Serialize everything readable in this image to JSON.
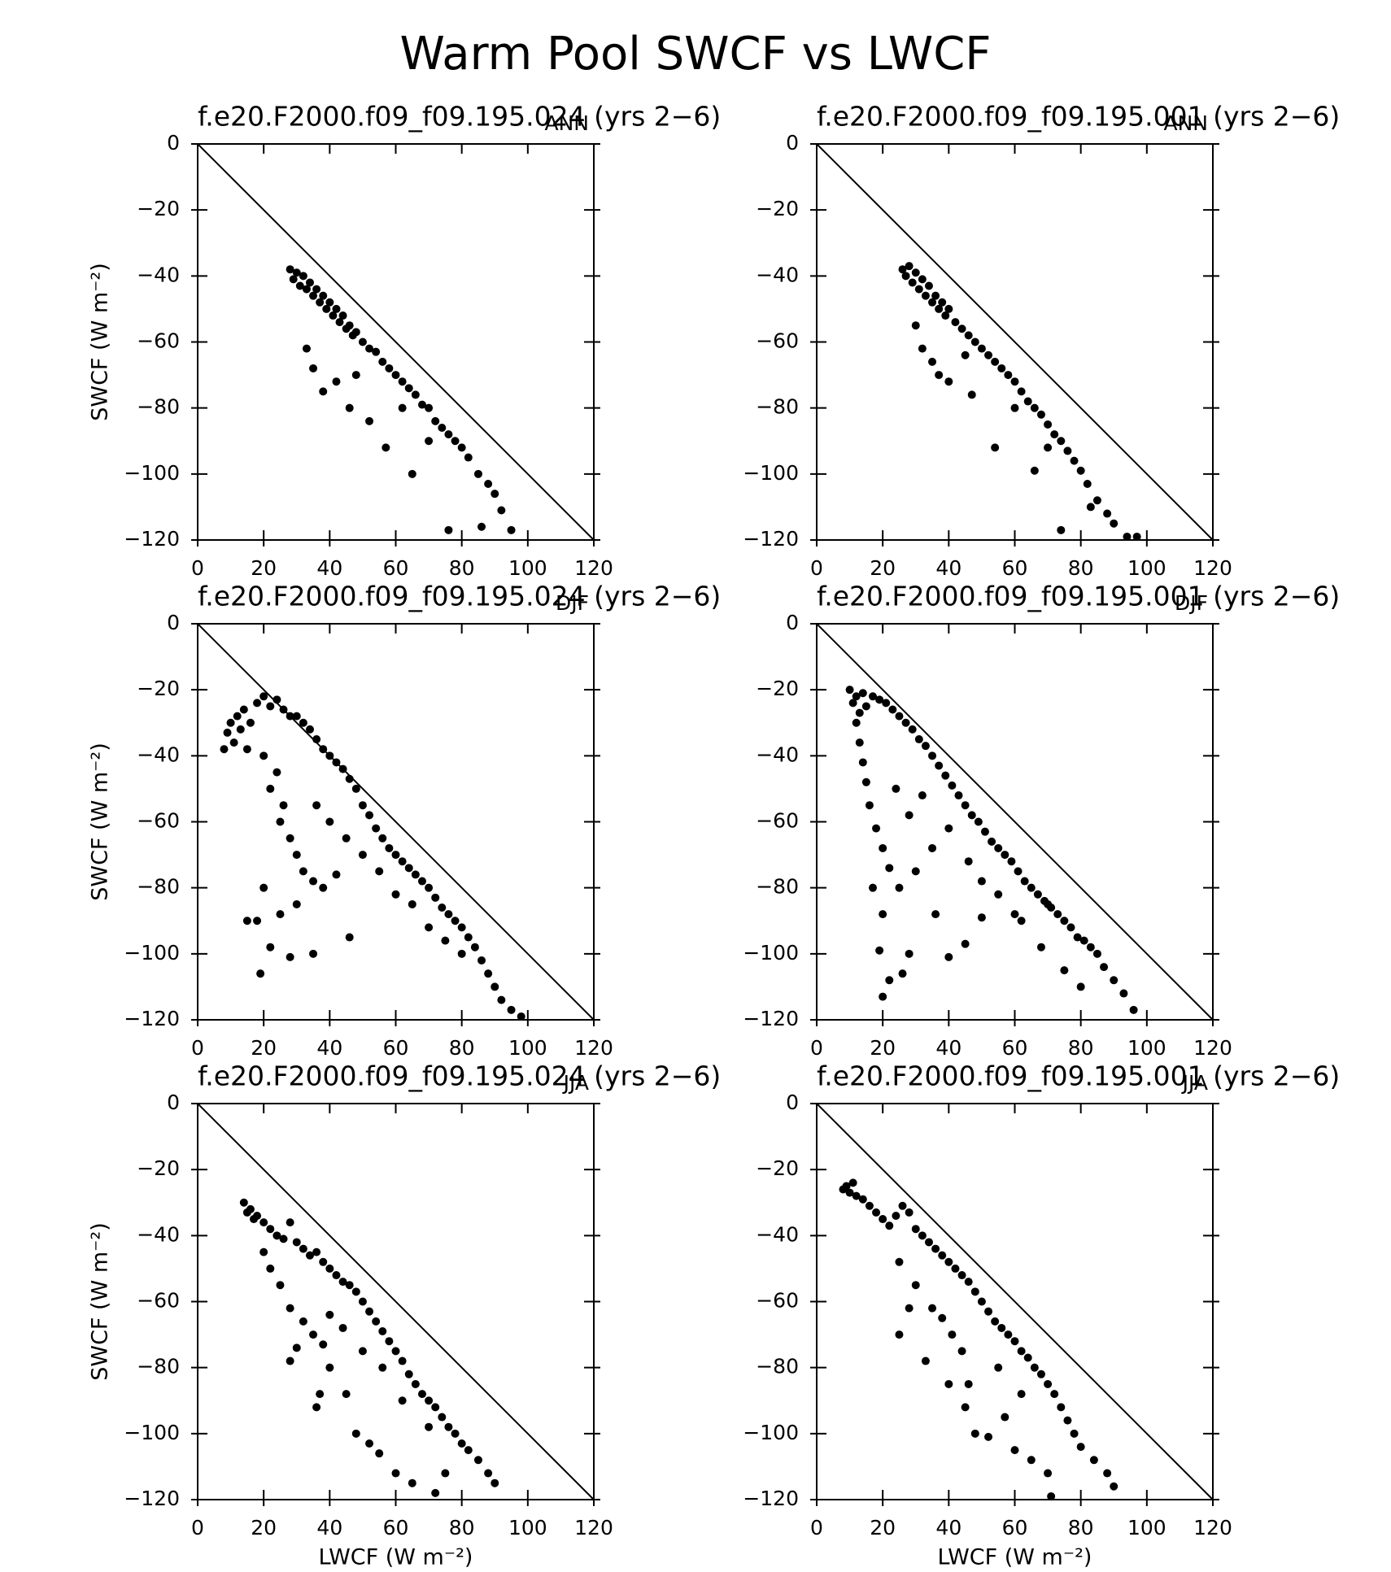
{
  "title": "Warm Pool SWCF vs LWCF",
  "chart_data": [
    {
      "type": "scatter",
      "title": "f.e20.F2000.f09_f09.195.024 (yrs 2−6)",
      "label": "ANN",
      "ylabel": "SWCF (W m⁻²)",
      "color": "#000000",
      "x": [
        28,
        29,
        30,
        31,
        32,
        33,
        34,
        35,
        36,
        37,
        38,
        39,
        40,
        41,
        42,
        43,
        44,
        45,
        46,
        47,
        48,
        50,
        52,
        54,
        56,
        58,
        60,
        62,
        64,
        66,
        68,
        70,
        72,
        74,
        76,
        78,
        80,
        82,
        85,
        88,
        90,
        92,
        95,
        33,
        35,
        38,
        42,
        46,
        48,
        52,
        57,
        65,
        76,
        86,
        62,
        70
      ],
      "y": [
        -38,
        -41,
        -39,
        -43,
        -40,
        -44,
        -42,
        -46,
        -44,
        -48,
        -46,
        -50,
        -48,
        -52,
        -50,
        -54,
        -52,
        -56,
        -55,
        -58,
        -57,
        -60,
        -62,
        -63,
        -66,
        -68,
        -70,
        -72,
        -74,
        -76,
        -79,
        -80,
        -84,
        -86,
        -88,
        -90,
        -92,
        -95,
        -100,
        -103,
        -106,
        -111,
        -117,
        -62,
        -68,
        -75,
        -72,
        -80,
        -70,
        -84,
        -92,
        -100,
        -117,
        -116,
        -80,
        -90
      ],
      "xlim": [
        0,
        120
      ],
      "ylim": [
        -120,
        0
      ],
      "xticks": [
        0,
        20,
        40,
        60,
        80,
        100,
        120
      ],
      "yticks": [
        0,
        {
          "value": -20,
          "label": "−20"
        },
        {
          "value": -40,
          "label": "−40"
        },
        {
          "value": -60,
          "label": "−60"
        },
        {
          "value": -80,
          "label": "−80"
        },
        {
          "value": -100,
          "label": "−100"
        },
        {
          "value": -120,
          "label": "−120"
        }
      ]
    },
    {
      "type": "scatter",
      "title": "f.e20.F2000.f09_f09.195.001 (yrs 2−6)",
      "label": "ANN",
      "color": "#000000",
      "x": [
        26,
        27,
        28,
        29,
        30,
        31,
        32,
        33,
        34,
        35,
        36,
        37,
        38,
        39,
        40,
        42,
        44,
        46,
        48,
        50,
        52,
        54,
        56,
        58,
        60,
        62,
        64,
        66,
        68,
        70,
        72,
        74,
        76,
        78,
        80,
        82,
        85,
        88,
        90,
        94,
        97,
        30,
        32,
        35,
        37,
        40,
        45,
        47,
        54,
        60,
        66,
        74,
        83,
        70
      ],
      "y": [
        -38,
        -40,
        -37,
        -42,
        -39,
        -44,
        -41,
        -46,
        -43,
        -48,
        -46,
        -50,
        -48,
        -52,
        -50,
        -54,
        -56,
        -58,
        -60,
        -62,
        -64,
        -66,
        -68,
        -70,
        -72,
        -75,
        -78,
        -80,
        -82,
        -85,
        -88,
        -90,
        -93,
        -96,
        -99,
        -103,
        -108,
        -112,
        -115,
        -119,
        -119,
        -55,
        -62,
        -66,
        -70,
        -72,
        -64,
        -76,
        -92,
        -80,
        -99,
        -117,
        -110,
        -92
      ],
      "xlim": [
        0,
        120
      ],
      "ylim": [
        -120,
        0
      ],
      "xticks": [
        0,
        20,
        40,
        60,
        80,
        100,
        120
      ],
      "yticks": [
        0,
        {
          "value": -20,
          "label": "−20"
        },
        {
          "value": -40,
          "label": "−40"
        },
        {
          "value": -60,
          "label": "−60"
        },
        {
          "value": -80,
          "label": "−80"
        },
        {
          "value": -100,
          "label": "−100"
        },
        {
          "value": -120,
          "label": "−120"
        }
      ]
    },
    {
      "type": "scatter",
      "title": "f.e20.F2000.f09_f09.195.024 (yrs 2−6)",
      "label": "DJF",
      "ylabel": "SWCF (W m⁻²)",
      "color": "#000000",
      "x": [
        8,
        9,
        10,
        11,
        12,
        13,
        14,
        15,
        16,
        18,
        20,
        22,
        24,
        26,
        28,
        30,
        32,
        34,
        36,
        38,
        40,
        42,
        44,
        46,
        48,
        50,
        52,
        54,
        56,
        58,
        60,
        62,
        64,
        66,
        68,
        70,
        72,
        74,
        76,
        78,
        80,
        82,
        84,
        86,
        88,
        90,
        92,
        95,
        98,
        20,
        22,
        25,
        28,
        30,
        32,
        35,
        38,
        42,
        24,
        26,
        36,
        40,
        45,
        20,
        18,
        15,
        19,
        22,
        28,
        35,
        46,
        30,
        25,
        60,
        70,
        75,
        65,
        55,
        50,
        80
      ],
      "y": [
        -38,
        -33,
        -30,
        -36,
        -28,
        -32,
        -26,
        -38,
        -30,
        -24,
        -22,
        -25,
        -23,
        -26,
        -28,
        -28,
        -30,
        -32,
        -35,
        -38,
        -40,
        -42,
        -44,
        -47,
        -50,
        -55,
        -58,
        -62,
        -65,
        -68,
        -70,
        -72,
        -74,
        -76,
        -78,
        -80,
        -83,
        -86,
        -88,
        -90,
        -92,
        -95,
        -98,
        -102,
        -106,
        -110,
        -114,
        -117,
        -119,
        -40,
        -50,
        -60,
        -65,
        -70,
        -75,
        -78,
        -80,
        -76,
        -45,
        -55,
        -55,
        -60,
        -65,
        -80,
        -90,
        -90,
        -106,
        -98,
        -101,
        -100,
        -95,
        -85,
        -88,
        -82,
        -92,
        -96,
        -85,
        -75,
        -70,
        -100
      ],
      "xlim": [
        0,
        120
      ],
      "ylim": [
        -120,
        0
      ],
      "xticks": [
        0,
        20,
        40,
        60,
        80,
        100,
        120
      ],
      "yticks": [
        0,
        {
          "value": -20,
          "label": "−20"
        },
        {
          "value": -40,
          "label": "−40"
        },
        {
          "value": -60,
          "label": "−60"
        },
        {
          "value": -80,
          "label": "−80"
        },
        {
          "value": -100,
          "label": "−100"
        },
        {
          "value": -120,
          "label": "−120"
        }
      ]
    },
    {
      "type": "scatter",
      "title": "f.e20.F2000.f09_f09.195.001 (yrs 2−6)",
      "label": "DJF",
      "color": "#000000",
      "x": [
        10,
        11,
        12,
        13,
        14,
        15,
        17,
        19,
        21,
        23,
        25,
        27,
        29,
        31,
        33,
        35,
        37,
        39,
        41,
        43,
        45,
        47,
        49,
        51,
        53,
        55,
        57,
        59,
        61,
        63,
        65,
        67,
        69,
        71,
        73,
        75,
        77,
        79,
        81,
        83,
        85,
        87,
        90,
        93,
        96,
        12,
        13,
        14,
        15,
        16,
        18,
        20,
        22,
        17,
        20,
        19,
        20,
        22,
        26,
        28,
        40,
        45,
        25,
        30,
        35,
        28,
        24,
        32,
        40,
        46,
        50,
        55,
        62,
        68,
        75,
        80,
        70,
        60,
        50,
        36
      ],
      "y": [
        -20,
        -24,
        -22,
        -27,
        -21,
        -25,
        -22,
        -23,
        -24,
        -26,
        -28,
        -30,
        -32,
        -35,
        -37,
        -40,
        -43,
        -46,
        -49,
        -52,
        -55,
        -58,
        -60,
        -63,
        -66,
        -68,
        -70,
        -72,
        -75,
        -78,
        -80,
        -82,
        -84,
        -86,
        -88,
        -90,
        -92,
        -95,
        -96,
        -98,
        -100,
        -104,
        -108,
        -112,
        -117,
        -30,
        -36,
        -42,
        -48,
        -55,
        -62,
        -68,
        -74,
        -80,
        -88,
        -99,
        -113,
        -108,
        -106,
        -100,
        -101,
        -97,
        -80,
        -75,
        -68,
        -58,
        -50,
        -52,
        -62,
        -72,
        -78,
        -82,
        -90,
        -98,
        -105,
        -110,
        -85,
        -88,
        -89,
        -88
      ],
      "xlim": [
        0,
        120
      ],
      "ylim": [
        -120,
        0
      ],
      "xticks": [
        0,
        20,
        40,
        60,
        80,
        100,
        120
      ],
      "yticks": [
        0,
        {
          "value": -20,
          "label": "−20"
        },
        {
          "value": -40,
          "label": "−40"
        },
        {
          "value": -60,
          "label": "−60"
        },
        {
          "value": -80,
          "label": "−80"
        },
        {
          "value": -100,
          "label": "−100"
        },
        {
          "value": -120,
          "label": "−120"
        }
      ]
    },
    {
      "type": "scatter",
      "title": "f.e20.F2000.f09_f09.195.024 (yrs 2−6)",
      "label": "JJA",
      "xlabel": "LWCF (W m⁻²)",
      "ylabel": "SWCF (W m⁻²)",
      "color": "#000000",
      "x": [
        14,
        15,
        16,
        17,
        18,
        20,
        22,
        24,
        26,
        28,
        30,
        32,
        34,
        36,
        38,
        40,
        42,
        44,
        46,
        48,
        50,
        52,
        54,
        56,
        58,
        60,
        62,
        64,
        66,
        68,
        70,
        72,
        74,
        76,
        78,
        80,
        82,
        85,
        88,
        90,
        20,
        22,
        25,
        28,
        30,
        28,
        32,
        35,
        38,
        40,
        37,
        36,
        45,
        48,
        52,
        55,
        60,
        65,
        72,
        75,
        40,
        44,
        50,
        56,
        62,
        70
      ],
      "y": [
        -30,
        -33,
        -32,
        -35,
        -34,
        -36,
        -38,
        -40,
        -41,
        -36,
        -42,
        -44,
        -46,
        -45,
        -48,
        -50,
        -52,
        -54,
        -55,
        -57,
        -60,
        -63,
        -66,
        -69,
        -72,
        -75,
        -78,
        -82,
        -85,
        -88,
        -90,
        -92,
        -95,
        -98,
        -100,
        -103,
        -105,
        -108,
        -112,
        -115,
        -45,
        -50,
        -55,
        -62,
        -74,
        -78,
        -66,
        -70,
        -73,
        -80,
        -88,
        -92,
        -88,
        -100,
        -103,
        -106,
        -112,
        -115,
        -118,
        -112,
        -64,
        -68,
        -75,
        -80,
        -90,
        -98
      ],
      "xlim": [
        0,
        120
      ],
      "ylim": [
        -120,
        0
      ],
      "xticks": [
        0,
        20,
        40,
        60,
        80,
        100,
        120
      ],
      "yticks": [
        0,
        {
          "value": -20,
          "label": "−20"
        },
        {
          "value": -40,
          "label": "−40"
        },
        {
          "value": -60,
          "label": "−60"
        },
        {
          "value": -80,
          "label": "−80"
        },
        {
          "value": -100,
          "label": "−100"
        },
        {
          "value": -120,
          "label": "−120"
        }
      ]
    },
    {
      "type": "scatter",
      "title": "f.e20.F2000.f09_f09.195.001 (yrs 2−6)",
      "label": "JJA",
      "xlabel": "LWCF (W m⁻²)",
      "color": "#000000",
      "x": [
        8,
        9,
        10,
        11,
        12,
        14,
        16,
        18,
        20,
        22,
        24,
        26,
        28,
        30,
        32,
        34,
        36,
        38,
        40,
        42,
        44,
        46,
        48,
        50,
        52,
        54,
        56,
        58,
        60,
        62,
        64,
        66,
        68,
        70,
        72,
        74,
        76,
        78,
        80,
        84,
        88,
        90,
        25,
        30,
        35,
        38,
        41,
        44,
        46,
        45,
        48,
        52,
        57,
        60,
        65,
        70,
        71,
        25,
        28,
        33,
        40,
        55,
        62
      ],
      "y": [
        -26,
        -25,
        -27,
        -24,
        -28,
        -29,
        -31,
        -33,
        -35,
        -37,
        -34,
        -31,
        -33,
        -38,
        -40,
        -42,
        -44,
        -46,
        -48,
        -50,
        -52,
        -54,
        -57,
        -60,
        -63,
        -66,
        -68,
        -70,
        -72,
        -75,
        -77,
        -80,
        -82,
        -85,
        -88,
        -92,
        -96,
        -100,
        -104,
        -108,
        -112,
        -116,
        -48,
        -55,
        -62,
        -65,
        -70,
        -75,
        -85,
        -92,
        -100,
        -101,
        -95,
        -105,
        -108,
        -112,
        -119,
        -70,
        -62,
        -78,
        -85,
        -80,
        -88
      ],
      "xlim": [
        0,
        120
      ],
      "ylim": [
        -120,
        0
      ],
      "xticks": [
        0,
        20,
        40,
        60,
        80,
        100,
        120
      ],
      "yticks": [
        0,
        {
          "value": -20,
          "label": "−20"
        },
        {
          "value": -40,
          "label": "−40"
        },
        {
          "value": -60,
          "label": "−60"
        },
        {
          "value": -80,
          "label": "−80"
        },
        {
          "value": -100,
          "label": "−100"
        },
        {
          "value": -120,
          "label": "−120"
        }
      ]
    }
  ]
}
